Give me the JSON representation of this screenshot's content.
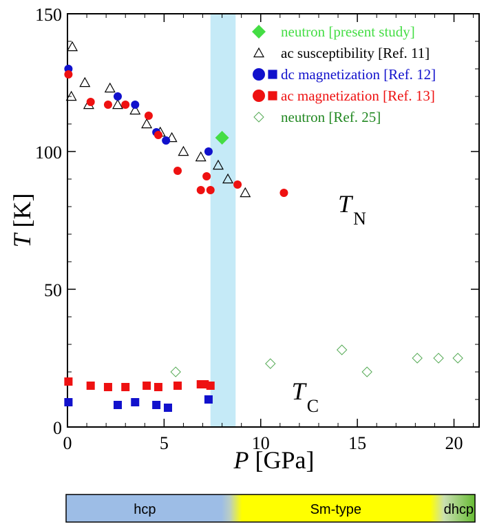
{
  "chart_data": {
    "type": "scatter",
    "xlabel_italic": "P",
    "xlabel_rest": "[GPa]",
    "ylabel_italic": "T",
    "ylabel_rest": "[K]",
    "xlim": [
      0,
      21.3
    ],
    "ylim": [
      0,
      150
    ],
    "x_ticks": [
      0,
      5,
      10,
      15,
      20
    ],
    "y_ticks": [
      0,
      50,
      100,
      150
    ],
    "highlight_band": [
      7.4,
      8.7
    ],
    "legend_position": "top-right",
    "series": [
      {
        "name": "neutron [present study]",
        "marker": "diamond-filled",
        "color": "#44dd44",
        "text_color": "#44dd44",
        "points": [
          [
            8.0,
            105
          ]
        ]
      },
      {
        "name": "ac susceptibility [Ref. 11]",
        "marker": "triangle-open",
        "color": "#000000",
        "text_color": "#000000",
        "points": [
          [
            0.25,
            138
          ],
          [
            0.2,
            120
          ],
          [
            0.9,
            125
          ],
          [
            1.1,
            117
          ],
          [
            2.2,
            123
          ],
          [
            2.6,
            117
          ],
          [
            3.5,
            115
          ],
          [
            4.1,
            110
          ],
          [
            4.8,
            107
          ],
          [
            5.4,
            105
          ],
          [
            6.0,
            100
          ],
          [
            6.9,
            98
          ],
          [
            7.8,
            95
          ],
          [
            8.3,
            90
          ],
          [
            9.2,
            85
          ]
        ]
      },
      {
        "name": "dc magnetization [Ref. 12]",
        "marker": "circle-square-filled",
        "color": "#1111cc",
        "text_color": "#1111cc",
        "points_TN": [
          [
            0.05,
            130
          ],
          [
            2.6,
            120
          ],
          [
            3.5,
            117
          ],
          [
            4.6,
            107
          ],
          [
            5.1,
            104
          ],
          [
            7.3,
            100
          ]
        ],
        "points_TC": [
          [
            0.05,
            9
          ],
          [
            2.6,
            8
          ],
          [
            3.5,
            9
          ],
          [
            4.6,
            8
          ],
          [
            5.2,
            7
          ],
          [
            7.3,
            10
          ]
        ]
      },
      {
        "name": "ac magnetization [Ref. 13]",
        "marker": "circle-square-filled",
        "color": "#ee1111",
        "text_color": "#ee1111",
        "points_TN": [
          [
            0.05,
            128
          ],
          [
            1.2,
            118
          ],
          [
            2.1,
            117
          ],
          [
            3.0,
            117
          ],
          [
            4.2,
            113
          ],
          [
            4.7,
            106
          ],
          [
            5.7,
            93
          ],
          [
            6.9,
            86
          ],
          [
            7.2,
            91
          ],
          [
            7.4,
            86
          ],
          [
            8.8,
            88
          ],
          [
            11.2,
            85
          ]
        ],
        "points_TC": [
          [
            0.05,
            16.5
          ],
          [
            1.2,
            15
          ],
          [
            2.1,
            14.5
          ],
          [
            3.0,
            14.5
          ],
          [
            4.1,
            15
          ],
          [
            4.7,
            14.5
          ],
          [
            5.7,
            15
          ],
          [
            6.9,
            15.5
          ],
          [
            7.1,
            15.5
          ],
          [
            7.4,
            15
          ]
        ]
      },
      {
        "name": "neutron [Ref. 25]",
        "marker": "diamond-open",
        "color": "#55aa55",
        "text_color": "#228822",
        "points": [
          [
            5.6,
            20
          ],
          [
            10.5,
            23
          ],
          [
            14.2,
            28
          ],
          [
            15.5,
            20
          ],
          [
            18.1,
            25
          ],
          [
            19.2,
            25
          ],
          [
            20.2,
            25
          ]
        ]
      }
    ],
    "annotations": [
      {
        "main": "T",
        "sub": "N",
        "x": 14.0,
        "y": 78
      },
      {
        "main": "T",
        "sub": "C",
        "x": 11.6,
        "y": 10
      }
    ],
    "phase_bar": {
      "segments": [
        {
          "label": "hcp",
          "from": 0.0,
          "to": 8.2,
          "color": "#9dbde6"
        },
        {
          "label": "Sm-type",
          "from": 9.0,
          "to": 19.1,
          "color": "#ffff00"
        },
        {
          "label": "dhcp",
          "from": 19.6,
          "to": 21.3,
          "color": "#66bb33"
        }
      ]
    }
  }
}
